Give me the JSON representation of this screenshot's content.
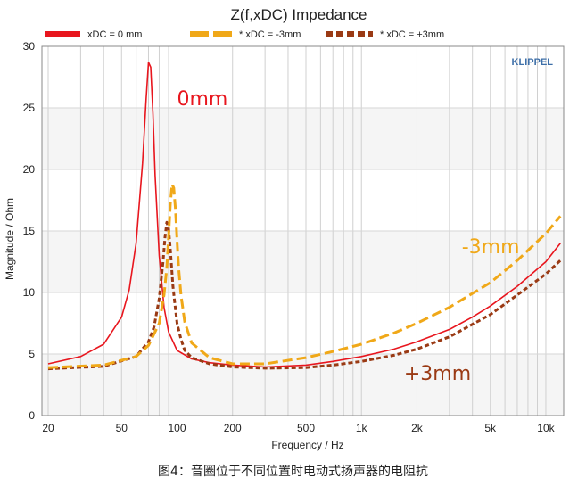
{
  "chart_data": {
    "type": "line",
    "title": "Z(f,xDC) Impedance",
    "xlabel": "Frequency / Hz",
    "ylabel": "Magnitude / Ohm",
    "xscale": "log",
    "xlim": [
      18.5,
      12500
    ],
    "ylim": [
      0,
      30
    ],
    "x_ticks": [
      {
        "value": 20,
        "label": "20"
      },
      {
        "value": 50,
        "label": "50"
      },
      {
        "value": 100,
        "label": "100"
      },
      {
        "value": 200,
        "label": "200"
      },
      {
        "value": 500,
        "label": "500"
      },
      {
        "value": 1000,
        "label": "1k"
      },
      {
        "value": 2000,
        "label": "2k"
      },
      {
        "value": 5000,
        "label": "5k"
      },
      {
        "value": 10000,
        "label": "10k"
      }
    ],
    "y_ticks": [
      0,
      5,
      10,
      15,
      20,
      25,
      30
    ],
    "grid": true,
    "legend_position": "top",
    "watermark": "KLIPPEL",
    "series": [
      {
        "name": "xDC = 0 mm",
        "color": "#e8161e",
        "style": "solid",
        "x": [
          20,
          30,
          40,
          50,
          55,
          60,
          65,
          68,
          70,
          72,
          74,
          76,
          80,
          85,
          90,
          100,
          120,
          150,
          200,
          300,
          500,
          700,
          1000,
          1500,
          2000,
          3000,
          4000,
          5000,
          7000,
          10000,
          12000
        ],
        "y": [
          4.2,
          4.8,
          5.8,
          8.0,
          10.2,
          14.0,
          20.5,
          25.8,
          28.7,
          28.3,
          24.5,
          19.5,
          13.0,
          8.8,
          6.8,
          5.3,
          4.6,
          4.3,
          4.1,
          3.95,
          4.1,
          4.4,
          4.8,
          5.4,
          6.0,
          7.0,
          8.0,
          8.9,
          10.5,
          12.5,
          14.0
        ]
      },
      {
        "name": "* xDC = -3mm",
        "color": "#f0a818",
        "style": "dashed",
        "x": [
          20,
          40,
          60,
          70,
          80,
          85,
          88,
          90,
          92,
          94,
          96,
          98,
          100,
          102,
          105,
          110,
          120,
          150,
          200,
          300,
          500,
          700,
          1000,
          1500,
          2000,
          3000,
          5000,
          7000,
          10000,
          12000
        ],
        "y": [
          3.9,
          4.1,
          4.8,
          5.7,
          7.5,
          9.8,
          12.0,
          14.5,
          17.2,
          18.8,
          18.5,
          16.8,
          14.2,
          12.0,
          9.8,
          7.6,
          5.9,
          4.7,
          4.2,
          4.2,
          4.7,
          5.2,
          5.8,
          6.7,
          7.5,
          8.8,
          10.8,
          12.6,
          14.8,
          16.2
        ]
      },
      {
        "name": "* xDC = +3mm",
        "color": "#9a3a14",
        "style": "dotted",
        "x": [
          20,
          40,
          60,
          70,
          75,
          80,
          84,
          86,
          88,
          90,
          92,
          95,
          100,
          105,
          110,
          120,
          150,
          200,
          300,
          500,
          700,
          1000,
          1500,
          2000,
          3000,
          5000,
          7000,
          10000,
          12000
        ],
        "y": [
          3.8,
          4.0,
          4.8,
          6.0,
          7.2,
          9.5,
          12.5,
          14.5,
          15.7,
          15.2,
          13.5,
          10.5,
          7.5,
          6.2,
          5.3,
          4.7,
          4.2,
          3.95,
          3.85,
          3.9,
          4.1,
          4.4,
          4.9,
          5.4,
          6.4,
          8.2,
          9.8,
          11.5,
          12.6
        ]
      }
    ],
    "annotations": [
      {
        "text": "0mm",
        "x": 100,
        "y": 25.2,
        "color": "#e8161e"
      },
      {
        "text": "-3mm",
        "x": 3500,
        "y": 13.2,
        "color": "#f0a818"
      },
      {
        "text": "+3mm",
        "x": 1700,
        "y": 2.9,
        "color": "#9a3a14"
      }
    ]
  },
  "caption": "图4：音圈位于不同位置时电动式扬声器的电阻抗"
}
